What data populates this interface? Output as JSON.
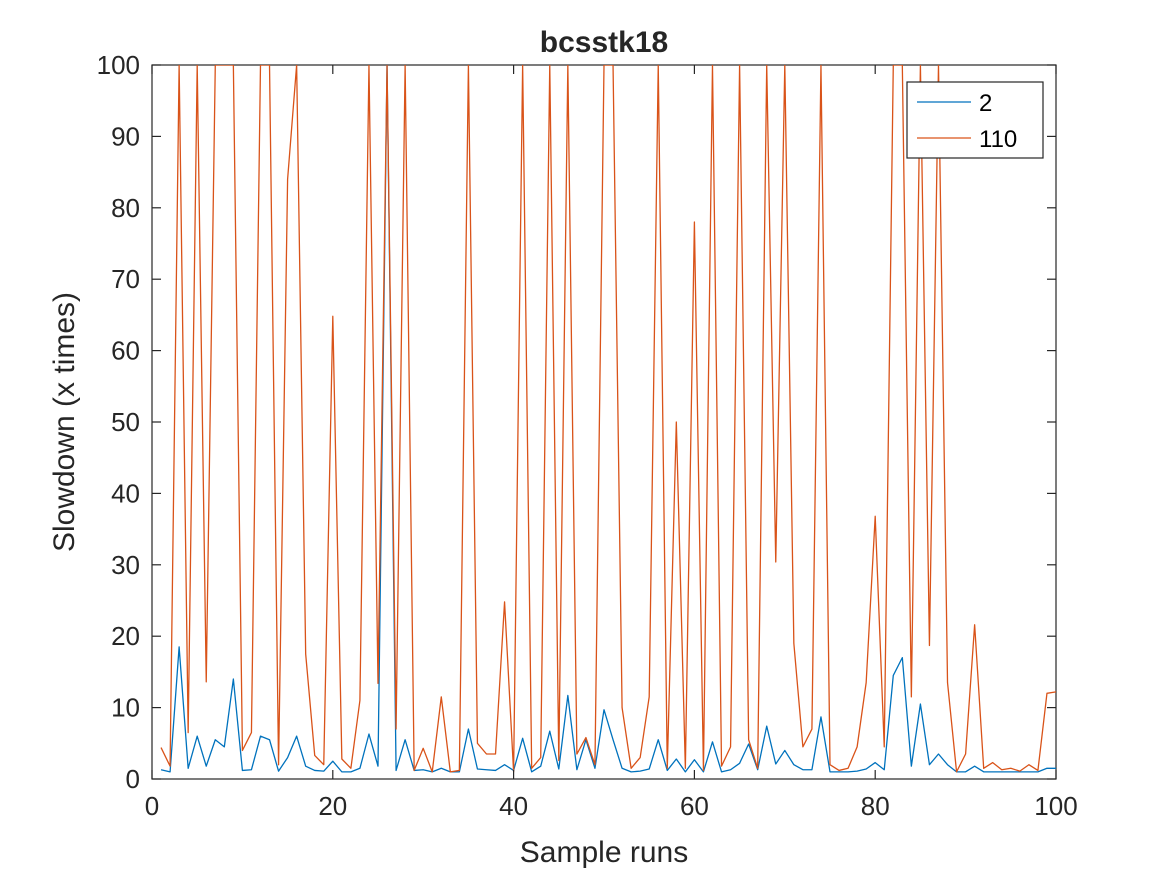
{
  "chart_data": {
    "type": "line",
    "title": "bcsstk18",
    "xlabel": "Sample runs",
    "ylabel": "Slowdown (x times)",
    "xlim": [
      0,
      100
    ],
    "ylim": [
      0,
      100
    ],
    "xticks": [
      "0",
      "20",
      "40",
      "60",
      "80",
      "100"
    ],
    "yticks": [
      "0",
      "10",
      "20",
      "30",
      "40",
      "50",
      "60",
      "70",
      "80",
      "90",
      "100"
    ],
    "grid": false,
    "legend_position": "top-right",
    "x": [
      1,
      2,
      3,
      4,
      5,
      6,
      7,
      8,
      9,
      10,
      11,
      12,
      13,
      14,
      15,
      16,
      17,
      18,
      19,
      20,
      21,
      22,
      23,
      24,
      25,
      26,
      27,
      28,
      29,
      30,
      31,
      32,
      33,
      34,
      35,
      36,
      37,
      38,
      39,
      40,
      41,
      42,
      43,
      44,
      45,
      46,
      47,
      48,
      49,
      50,
      51,
      52,
      53,
      54,
      55,
      56,
      57,
      58,
      59,
      60,
      61,
      62,
      63,
      64,
      65,
      66,
      67,
      68,
      69,
      70,
      71,
      72,
      73,
      74,
      75,
      76,
      77,
      78,
      79,
      80,
      81,
      82,
      83,
      84,
      85,
      86,
      87,
      88,
      89,
      90,
      91,
      92,
      93,
      94,
      95,
      96,
      97,
      98,
      99,
      100
    ],
    "series": [
      {
        "name": "2",
        "color": "#0072BD",
        "values": [
          1.3,
          1.0,
          18.5,
          1.5,
          6.0,
          1.8,
          5.5,
          4.5,
          14.0,
          1.2,
          1.3,
          6.0,
          5.5,
          1.1,
          3.0,
          6.0,
          1.8,
          1.2,
          1.1,
          2.5,
          1.0,
          1.0,
          1.5,
          6.3,
          1.8,
          100,
          1.2,
          5.5,
          1.2,
          1.3,
          1.0,
          1.5,
          1.0,
          1.0,
          7.0,
          1.4,
          1.3,
          1.2,
          2.0,
          1.2,
          5.7,
          1.0,
          1.8,
          6.7,
          1.4,
          11.7,
          1.3,
          5.5,
          1.5,
          9.7,
          5.5,
          1.5,
          1.0,
          1.1,
          1.4,
          5.5,
          1.2,
          2.8,
          1.0,
          2.7,
          1.0,
          5.2,
          1.0,
          1.3,
          2.2,
          4.9,
          1.3,
          7.4,
          2.1,
          4.0,
          2.0,
          1.3,
          1.3,
          8.7,
          1.0,
          1.0,
          1.0,
          1.1,
          1.4,
          2.3,
          1.3,
          14.5,
          17.0,
          1.8,
          10.5,
          2.0,
          3.5,
          2.0,
          1.0,
          1.0,
          1.8,
          1.0,
          1.0,
          1.0,
          1.0,
          1.0,
          1.0,
          1.0,
          1.5,
          1.5
        ]
      },
      {
        "name": "110",
        "color": "#D95319",
        "values": [
          4.4,
          1.8,
          100,
          6.5,
          100,
          13.6,
          100,
          100,
          100,
          4.0,
          6.5,
          100,
          100,
          2.0,
          84.0,
          100,
          17.5,
          3.3,
          2.0,
          64.8,
          2.8,
          1.5,
          11.0,
          100,
          13.4,
          100,
          7.0,
          100,
          1.2,
          4.3,
          1.0,
          11.5,
          1.0,
          1.2,
          100,
          5.0,
          3.5,
          3.5,
          24.8,
          1.0,
          100,
          1.5,
          3.0,
          100,
          2.6,
          100,
          3.5,
          5.8,
          2.0,
          100,
          100,
          10.0,
          1.5,
          3.0,
          11.5,
          100,
          1.5,
          50.0,
          1.5,
          78.0,
          1.2,
          100,
          1.8,
          4.5,
          100,
          5.5,
          1.5,
          100,
          30.4,
          100,
          19.0,
          4.5,
          7.0,
          100,
          2.0,
          1.2,
          1.5,
          4.5,
          13.5,
          36.8,
          4.5,
          100,
          100,
          11.5,
          100,
          18.7,
          100,
          13.5,
          1.0,
          3.5,
          21.6,
          1.5,
          2.3,
          1.3,
          1.5,
          1.1,
          2.0,
          1.2,
          12.0,
          12.2
        ]
      }
    ]
  }
}
